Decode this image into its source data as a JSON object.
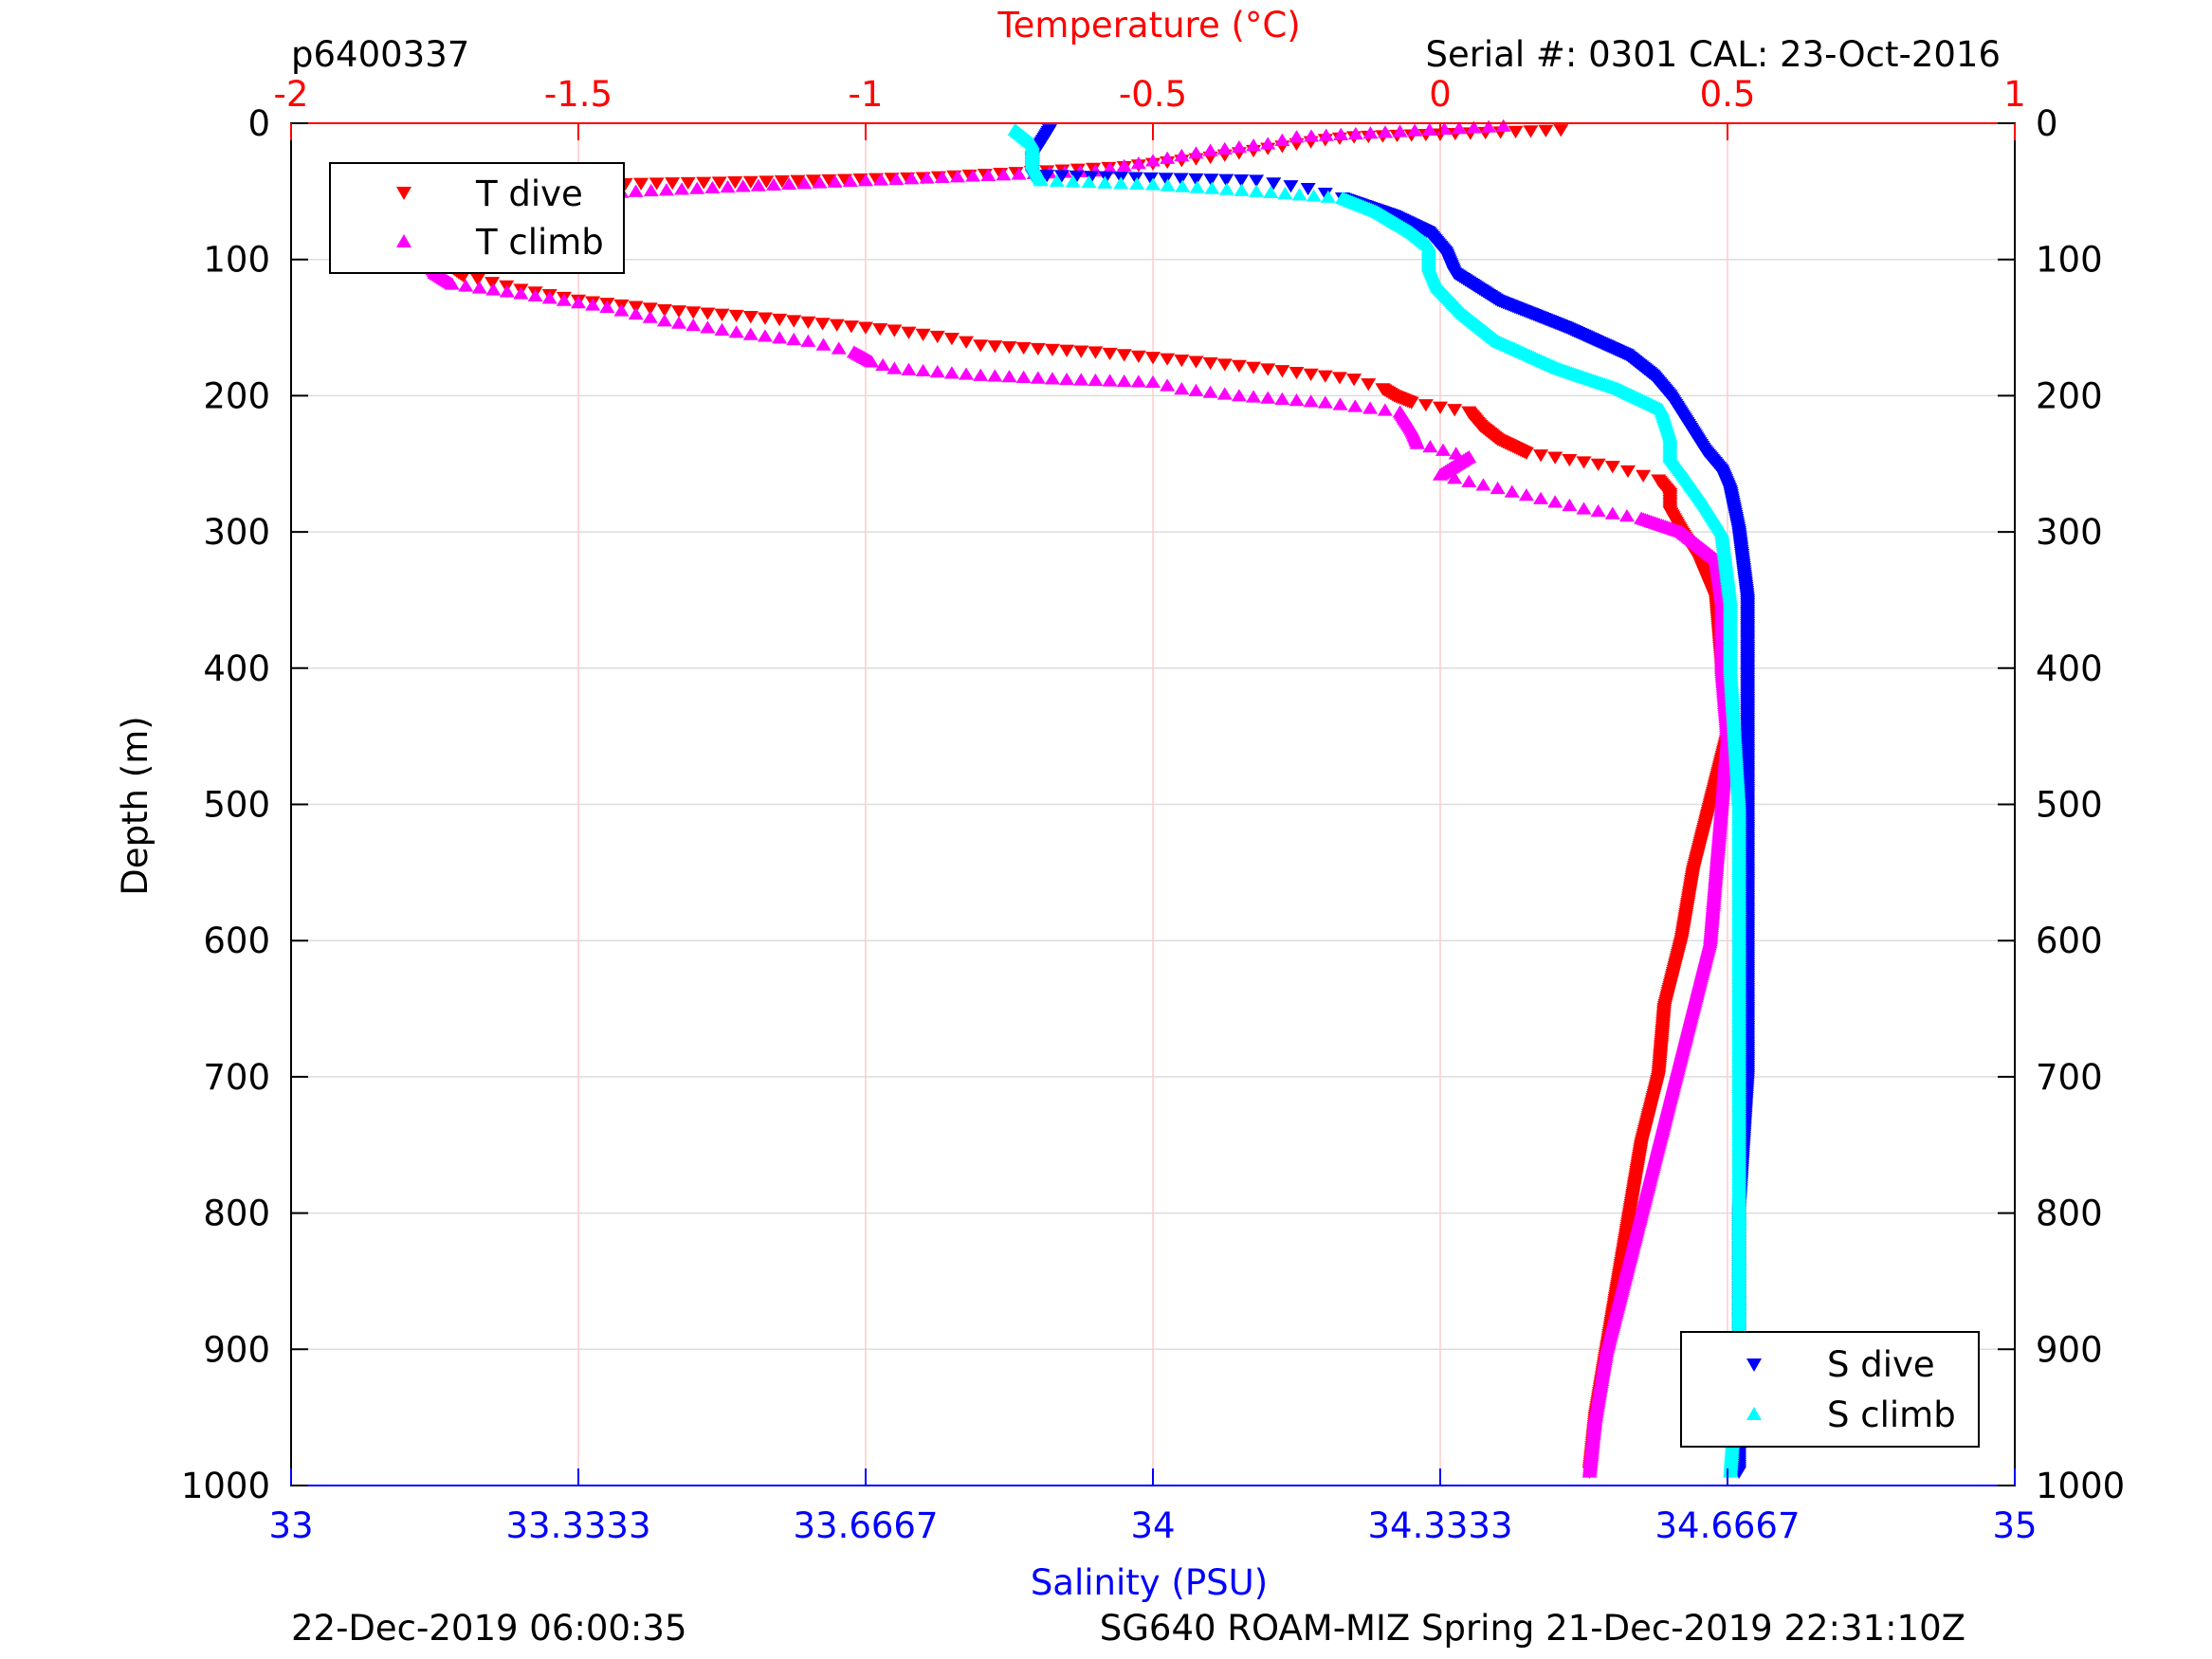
{
  "header": {
    "profile_id": "p6400337",
    "serial_cal": "Serial #: 0301  CAL: 23-Oct-2016"
  },
  "footer": {
    "left": "22-Dec-2019 06:00:35",
    "right": "SG640 ROAM-MIZ Spring 21-Dec-2019 22:31:10Z"
  },
  "colors": {
    "t_dive": "#ff0000",
    "t_climb": "#ff00ff",
    "s_dive": "#0000ff",
    "s_climb": "#00ffff",
    "temperature_axis": "#ff0000",
    "salinity_axis": "#0000ff",
    "grid": "#dddddd",
    "temperature_grid": "#ffcccc"
  },
  "chart_data": {
    "type": "scatter",
    "ylabel": "Depth (m)",
    "ylim": [
      0,
      1000
    ],
    "y_reversed": true,
    "y_ticks": [
      "0",
      "100",
      "200",
      "300",
      "400",
      "500",
      "600",
      "700",
      "800",
      "900",
      "1000"
    ],
    "x_top": {
      "label": "Temperature (°C)",
      "lim": [
        -2,
        1
      ],
      "ticks": [
        "-2",
        "-1.5",
        "-1",
        "-0.5",
        "0",
        "0.5",
        "1"
      ]
    },
    "x_bottom": {
      "label": "Salinity (PSU)",
      "lim": [
        33,
        35
      ],
      "ticks": [
        "33",
        "33.3333",
        "33.6667",
        "34",
        "34.3333",
        "34.6667",
        "35"
      ]
    },
    "grid": true,
    "legend_left": {
      "placement": "top-left",
      "entries": [
        "T dive",
        "T climb"
      ]
    },
    "legend_right": {
      "placement": "bottom-right",
      "entries": [
        "S dive",
        "S climb"
      ]
    },
    "series": [
      {
        "name": "T dive",
        "axis": "temperature",
        "marker": "triangle-down",
        "points": [
          [
            0.21,
            5
          ],
          [
            0.0,
            8
          ],
          [
            -0.15,
            10
          ],
          [
            -0.2,
            12
          ],
          [
            -0.4,
            25
          ],
          [
            -0.55,
            32
          ],
          [
            -0.9,
            40
          ],
          [
            -1.2,
            43
          ],
          [
            -1.5,
            45
          ],
          [
            -1.6,
            50
          ],
          [
            -1.7,
            55
          ],
          [
            -1.74,
            62
          ],
          [
            -1.74,
            70
          ],
          [
            -1.73,
            80
          ],
          [
            -1.75,
            90
          ],
          [
            -1.74,
            100
          ],
          [
            -1.7,
            112
          ],
          [
            -1.6,
            122
          ],
          [
            -1.5,
            130
          ],
          [
            -1.35,
            137
          ],
          [
            -1.2,
            142
          ],
          [
            -1.05,
            148
          ],
          [
            -0.95,
            152
          ],
          [
            -0.85,
            158
          ],
          [
            -0.8,
            163
          ],
          [
            -0.6,
            168
          ],
          [
            -0.5,
            172
          ],
          [
            -0.35,
            178
          ],
          [
            -0.25,
            183
          ],
          [
            -0.15,
            188
          ],
          [
            -0.1,
            195
          ],
          [
            -0.08,
            200
          ],
          [
            -0.05,
            205
          ],
          [
            0.05,
            212
          ],
          [
            0.07,
            222
          ],
          [
            0.1,
            232
          ],
          [
            0.15,
            242
          ],
          [
            0.3,
            252
          ],
          [
            0.38,
            262
          ],
          [
            0.4,
            272
          ],
          [
            0.4,
            285
          ],
          [
            0.42,
            300
          ],
          [
            0.45,
            320
          ],
          [
            0.48,
            350
          ],
          [
            0.49,
            400
          ],
          [
            0.5,
            450
          ],
          [
            0.47,
            500
          ],
          [
            0.44,
            550
          ],
          [
            0.42,
            600
          ],
          [
            0.39,
            650
          ],
          [
            0.38,
            700
          ],
          [
            0.35,
            750
          ],
          [
            0.33,
            800
          ],
          [
            0.31,
            850
          ],
          [
            0.29,
            900
          ],
          [
            0.27,
            950
          ],
          [
            0.26,
            990
          ]
        ]
      },
      {
        "name": "T climb",
        "axis": "temperature",
        "marker": "triangle-up",
        "points": [
          [
            0.11,
            2
          ],
          [
            -0.25,
            10
          ],
          [
            -0.3,
            15
          ],
          [
            -0.4,
            20
          ],
          [
            -0.6,
            35
          ],
          [
            -1.0,
            42
          ],
          [
            -1.4,
            50
          ],
          [
            -1.6,
            55
          ],
          [
            -1.7,
            60
          ],
          [
            -1.72,
            68
          ],
          [
            -1.73,
            78
          ],
          [
            -1.74,
            88
          ],
          [
            -1.76,
            100
          ],
          [
            -1.75,
            110
          ],
          [
            -1.72,
            118
          ],
          [
            -1.6,
            125
          ],
          [
            -1.45,
            135
          ],
          [
            -1.35,
            145
          ],
          [
            -1.2,
            155
          ],
          [
            -1.1,
            160
          ],
          [
            -1.02,
            168
          ],
          [
            -0.99,
            175
          ],
          [
            -0.95,
            180
          ],
          [
            -0.8,
            185
          ],
          [
            -0.65,
            188
          ],
          [
            -0.5,
            190
          ],
          [
            -0.45,
            195
          ],
          [
            -0.35,
            200
          ],
          [
            -0.2,
            205
          ],
          [
            -0.07,
            212
          ],
          [
            -0.05,
            225
          ],
          [
            -0.04,
            235
          ],
          [
            0.05,
            245
          ],
          [
            0.0,
            258
          ],
          [
            0.1,
            268
          ],
          [
            0.25,
            283
          ],
          [
            0.35,
            290
          ],
          [
            0.42,
            300
          ],
          [
            0.48,
            320
          ],
          [
            0.49,
            350
          ],
          [
            0.49,
            400
          ],
          [
            0.5,
            450
          ],
          [
            0.49,
            500
          ],
          [
            0.48,
            550
          ],
          [
            0.47,
            600
          ],
          [
            0.44,
            650
          ],
          [
            0.41,
            700
          ],
          [
            0.38,
            750
          ],
          [
            0.35,
            800
          ],
          [
            0.32,
            850
          ],
          [
            0.29,
            900
          ],
          [
            0.27,
            950
          ],
          [
            0.26,
            990
          ]
        ]
      },
      {
        "name": "S dive",
        "axis": "salinity",
        "marker": "triangle-down",
        "points": [
          [
            33.88,
            5
          ],
          [
            33.87,
            15
          ],
          [
            33.86,
            25
          ],
          [
            33.86,
            38
          ],
          [
            33.98,
            40
          ],
          [
            34.12,
            42
          ],
          [
            34.18,
            48
          ],
          [
            34.22,
            55
          ],
          [
            34.28,
            68
          ],
          [
            34.32,
            80
          ],
          [
            34.34,
            95
          ],
          [
            34.35,
            110
          ],
          [
            34.4,
            130
          ],
          [
            34.48,
            150
          ],
          [
            34.55,
            170
          ],
          [
            34.58,
            185
          ],
          [
            34.6,
            200
          ],
          [
            34.62,
            220
          ],
          [
            34.64,
            240
          ],
          [
            34.66,
            255
          ],
          [
            34.67,
            270
          ],
          [
            34.68,
            300
          ],
          [
            34.69,
            350
          ],
          [
            34.69,
            400
          ],
          [
            34.69,
            500
          ],
          [
            34.69,
            600
          ],
          [
            34.69,
            700
          ],
          [
            34.68,
            800
          ],
          [
            34.68,
            900
          ],
          [
            34.68,
            990
          ]
        ]
      },
      {
        "name": "S climb",
        "axis": "salinity",
        "marker": "triangle-up",
        "points": [
          [
            33.84,
            5
          ],
          [
            33.86,
            15
          ],
          [
            33.86,
            30
          ],
          [
            33.87,
            42
          ],
          [
            34.0,
            45
          ],
          [
            34.12,
            50
          ],
          [
            34.22,
            55
          ],
          [
            34.26,
            65
          ],
          [
            34.3,
            80
          ],
          [
            34.32,
            90
          ],
          [
            34.32,
            105
          ],
          [
            34.33,
            120
          ],
          [
            34.36,
            140
          ],
          [
            34.4,
            160
          ],
          [
            34.47,
            180
          ],
          [
            34.54,
            195
          ],
          [
            34.59,
            210
          ],
          [
            34.6,
            230
          ],
          [
            34.6,
            245
          ],
          [
            34.62,
            262
          ],
          [
            34.64,
            280
          ],
          [
            34.66,
            300
          ],
          [
            34.67,
            350
          ],
          [
            34.67,
            400
          ],
          [
            34.68,
            500
          ],
          [
            34.68,
            600
          ],
          [
            34.68,
            700
          ],
          [
            34.68,
            800
          ],
          [
            34.68,
            900
          ],
          [
            34.67,
            990
          ]
        ]
      }
    ]
  }
}
